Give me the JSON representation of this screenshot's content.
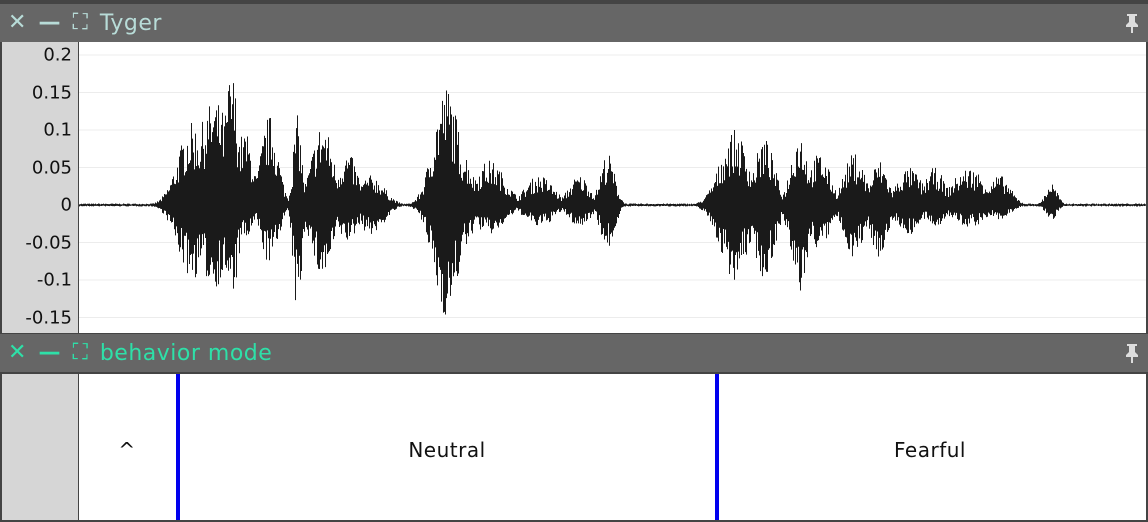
{
  "waveform_panel": {
    "title": "Tyger",
    "title_color": "#b8dcd8",
    "icons": [
      "close-icon",
      "minimize-icon",
      "maximize-icon",
      "pin-icon"
    ],
    "y_ticks": [
      "0.2",
      "0.15",
      "0.1",
      "0.05",
      "0",
      "-0.05",
      "-0.1",
      "-0.15"
    ],
    "y_tick_values": [
      0.2,
      0.15,
      0.1,
      0.05,
      0,
      -0.05,
      -0.1,
      -0.15
    ]
  },
  "label_panel": {
    "title": "behavior mode",
    "title_color": "#2ee0a8",
    "boundary_color": "#0000ee",
    "segments": [
      {
        "label": "^"
      },
      {
        "label": "Neutral"
      },
      {
        "label": "Fearful"
      }
    ]
  }
}
